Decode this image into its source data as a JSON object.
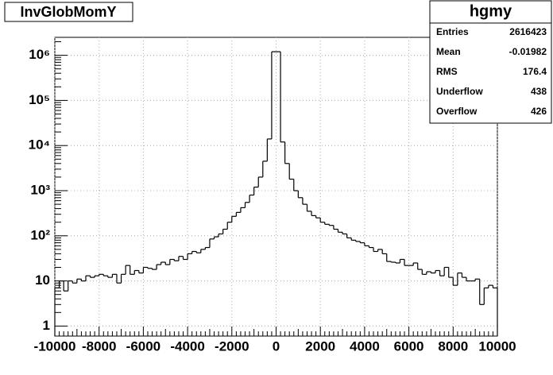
{
  "chart_data": {
    "type": "histogram",
    "title": "InvGlobMomY",
    "bins": [
      -10000,
      -9800,
      -9600,
      -9400,
      -9200,
      -9000,
      -8800,
      -8600,
      -8400,
      -8200,
      -8000,
      -7800,
      -7600,
      -7400,
      -7200,
      -7000,
      -6800,
      -6600,
      -6400,
      -6200,
      -6000,
      -5800,
      -5600,
      -5400,
      -5200,
      -5000,
      -4800,
      -4600,
      -4400,
      -4200,
      -4000,
      -3800,
      -3600,
      -3400,
      -3200,
      -3000,
      -2800,
      -2600,
      -2400,
      -2200,
      -2000,
      -1800,
      -1600,
      -1400,
      -1200,
      -1000,
      -800,
      -600,
      -400,
      -200,
      0,
      200,
      400,
      600,
      800,
      1000,
      1200,
      1400,
      1600,
      1800,
      2000,
      2200,
      2400,
      2600,
      2800,
      3000,
      3200,
      3400,
      3600,
      3800,
      4000,
      4200,
      4400,
      4600,
      4800,
      5000,
      5200,
      5400,
      5600,
      5800,
      6000,
      6200,
      6400,
      6600,
      6800,
      7000,
      7200,
      7400,
      7600,
      7800,
      8000,
      8200,
      8400,
      8600,
      8800,
      9000,
      9200,
      9400,
      9600,
      9800,
      10000
    ],
    "values": [
      7,
      10,
      6,
      10,
      9,
      11,
      10,
      13,
      12,
      13,
      14,
      13,
      12,
      14,
      9,
      14,
      22,
      14,
      17,
      15,
      20,
      19,
      18,
      23,
      26,
      23,
      30,
      28,
      35,
      30,
      40,
      45,
      42,
      50,
      55,
      85,
      95,
      110,
      140,
      200,
      270,
      330,
      420,
      550,
      800,
      1200,
      2000,
      4500,
      14000,
      1200000,
      1200000,
      12000,
      4000,
      1800,
      1000,
      700,
      500,
      350,
      280,
      250,
      200,
      180,
      170,
      140,
      120,
      110,
      90,
      80,
      75,
      70,
      60,
      55,
      45,
      50,
      40,
      27,
      26,
      25,
      30,
      22,
      22,
      25,
      18,
      14,
      16,
      15,
      17,
      13,
      20,
      12,
      8,
      15,
      12,
      10,
      10,
      11,
      3,
      7,
      8,
      7
    ],
    "color": "#000000",
    "xlim": [
      -10000,
      10000
    ],
    "xticks": [
      -10000,
      -8000,
      -6000,
      -4000,
      -2000,
      0,
      2000,
      4000,
      6000,
      8000,
      10000
    ],
    "ylim": [
      0.6,
      2500000
    ],
    "log_y": true,
    "yticks": [
      1,
      10,
      {
        "value": 100,
        "label": "10²"
      },
      {
        "value": 1000,
        "label": "10³"
      },
      {
        "value": 10000,
        "label": "10⁴"
      },
      {
        "value": 100000,
        "label": "10⁵"
      },
      {
        "value": 1000000,
        "label": "10⁶"
      }
    ],
    "grid": true,
    "stats": {
      "title": "hgmy",
      "rows": [
        {
          "name": "Entries",
          "value": 2616423
        },
        {
          "name": "Mean",
          "value": -0.01982
        },
        {
          "name": "RMS",
          "value": 176.4
        },
        {
          "name": "Underflow",
          "value": 438
        },
        {
          "name": "Overflow",
          "value": 426
        }
      ]
    }
  }
}
